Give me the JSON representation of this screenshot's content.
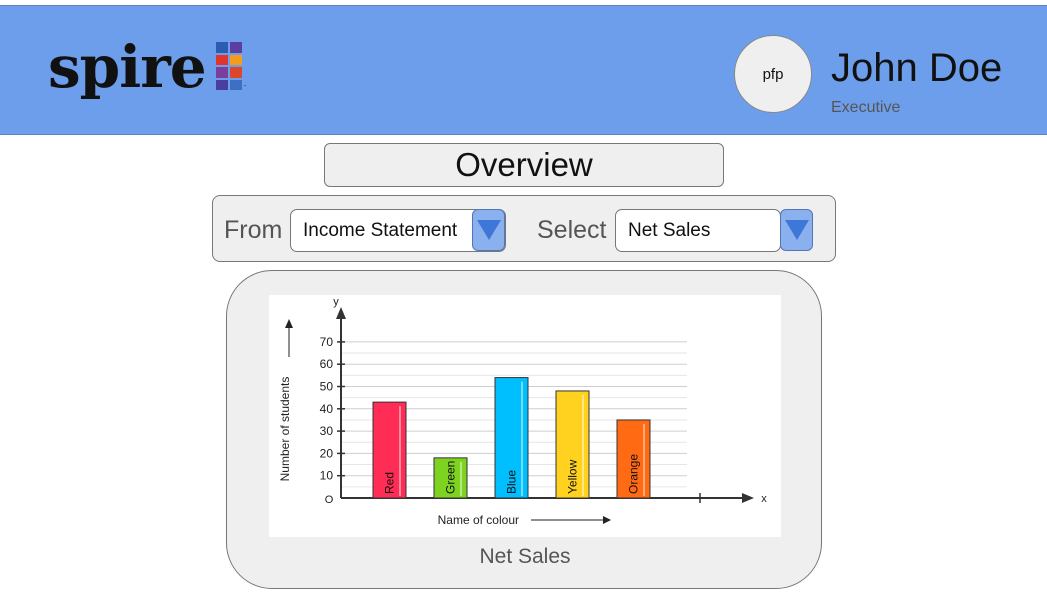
{
  "brand": {
    "logo_text": "spire",
    "logo_mark_colors": [
      "#2a5db0",
      "#5b3fa0",
      "#e0352b",
      "#f39c1e",
      "#7a3e9d",
      "#d9482b",
      "#4a3f9e",
      "#3d6fc4"
    ]
  },
  "user": {
    "avatar_label": "pfp",
    "name": "John Doe",
    "role": "Executive"
  },
  "page_title": "Overview",
  "filters": {
    "from_label": "From",
    "from_value": "Income Statement",
    "select_label": "Select",
    "select_value": "Net Sales"
  },
  "chart_caption": "Net Sales",
  "colors": {
    "header_bg": "#6d9eeb",
    "dropdown_bg": "#8bb0ee",
    "dropdown_arrow": "#3d78d8",
    "panel_bg": "#efefef"
  },
  "chart_data": {
    "type": "bar",
    "title": "",
    "xlabel": "Name of colour",
    "ylabel": "Number of students",
    "x_axis_letter": "x",
    "y_axis_letter": "y",
    "origin_label": "O",
    "categories": [
      "Red",
      "Green",
      "Blue",
      "Yellow",
      "Orange"
    ],
    "values": [
      43,
      18,
      54,
      48,
      35
    ],
    "bar_colors": [
      "#ff2d55",
      "#7ed321",
      "#00bfff",
      "#ffd21f",
      "#ff6a13"
    ],
    "yticks": [
      "10",
      "20",
      "30",
      "40",
      "50",
      "60",
      "70"
    ],
    "ylim": [
      0,
      80
    ],
    "grid": true,
    "legend": "none"
  }
}
